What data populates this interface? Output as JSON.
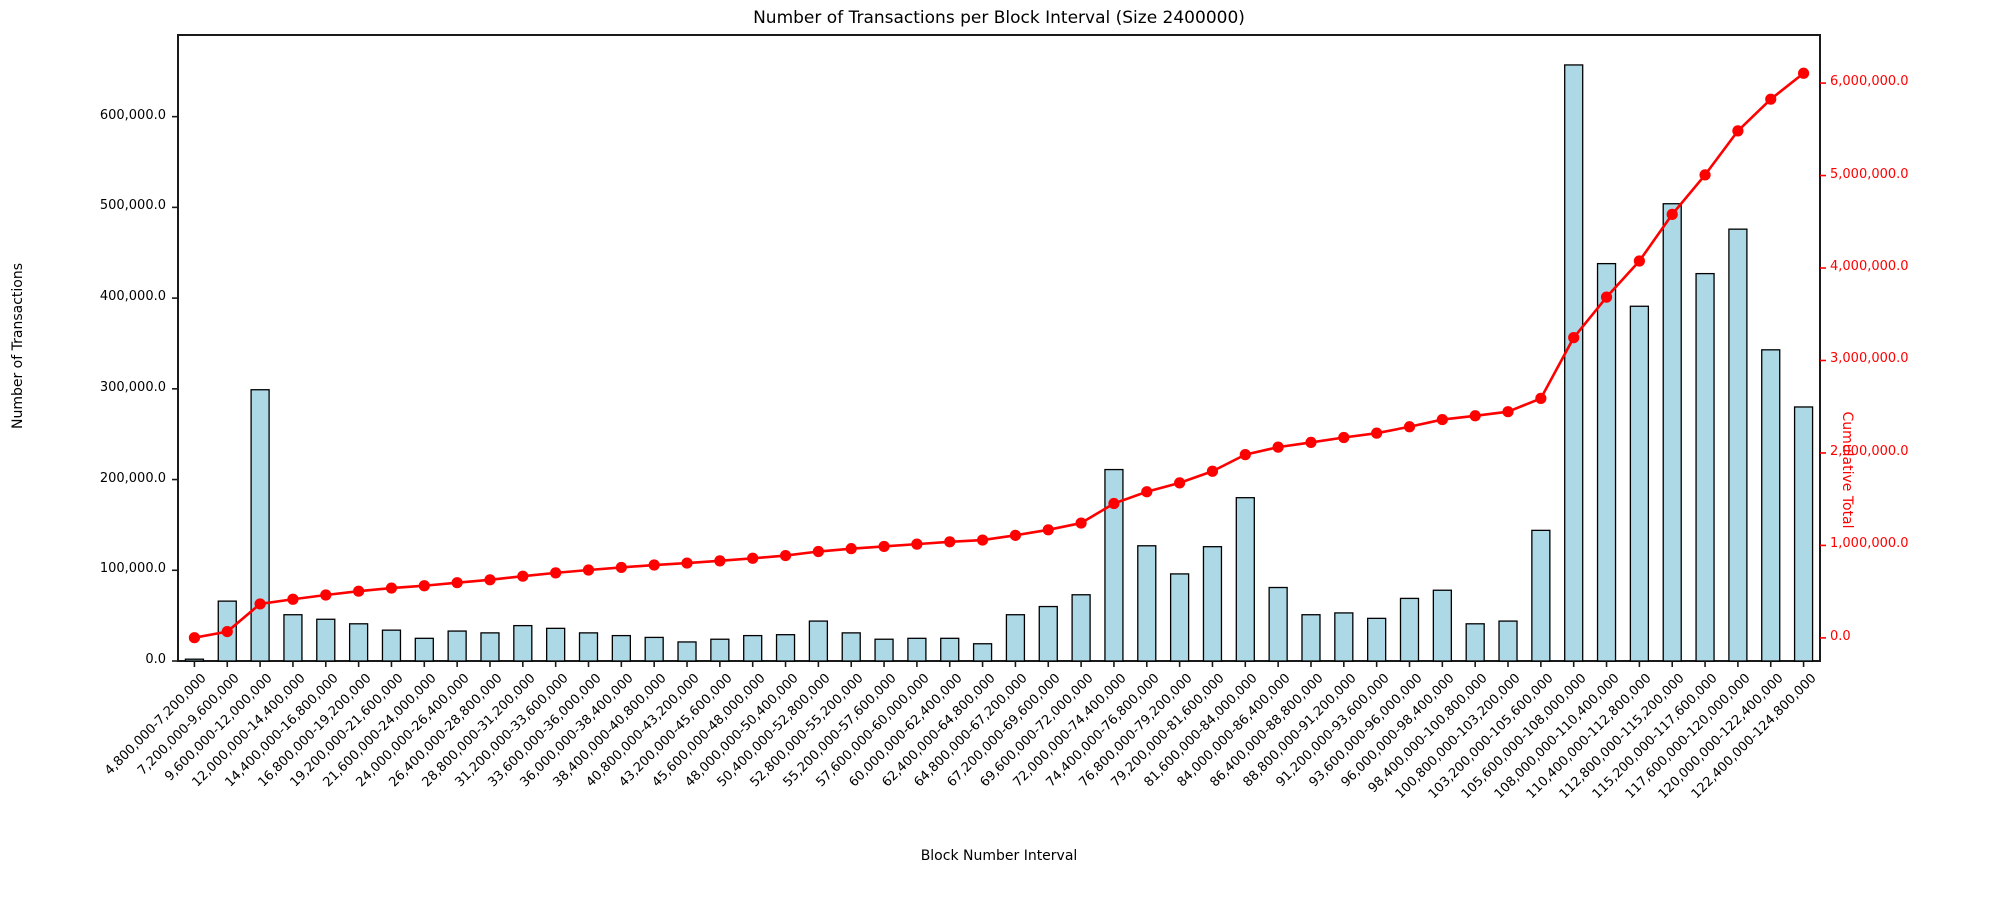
{
  "chart_data": {
    "type": "bar",
    "title": "Number of Transactions per Block Interval (Size 2400000)",
    "xlabel": "Block Number Interval",
    "ylabel_left": "Number of Transactions",
    "ylabel_right": "Cumulative Total",
    "legend_position": "none",
    "grid": false,
    "categories": [
      "4,800,000-7,200,000",
      "7,200,000-9,600,000",
      "9,600,000-12,000,000",
      "12,000,000-14,400,000",
      "14,400,000-16,800,000",
      "16,800,000-19,200,000",
      "19,200,000-21,600,000",
      "21,600,000-24,000,000",
      "24,000,000-26,400,000",
      "26,400,000-28,800,000",
      "28,800,000-31,200,000",
      "31,200,000-33,600,000",
      "33,600,000-36,000,000",
      "36,000,000-38,400,000",
      "38,400,000-40,800,000",
      "40,800,000-43,200,000",
      "43,200,000-45,600,000",
      "45,600,000-48,000,000",
      "48,000,000-50,400,000",
      "50,400,000-52,800,000",
      "52,800,000-55,200,000",
      "55,200,000-57,600,000",
      "57,600,000-60,000,000",
      "60,000,000-62,400,000",
      "62,400,000-64,800,000",
      "64,800,000-67,200,000",
      "67,200,000-69,600,000",
      "69,600,000-72,000,000",
      "72,000,000-74,400,000",
      "74,400,000-76,800,000",
      "76,800,000-79,200,000",
      "79,200,000-81,600,000",
      "81,600,000-84,000,000",
      "84,000,000-86,400,000",
      "86,400,000-88,800,000",
      "88,800,000-91,200,000",
      "91,200,000-93,600,000",
      "93,600,000-96,000,000",
      "96,000,000-98,400,000",
      "98,400,000-100,800,000",
      "100,800,000-103,200,000",
      "103,200,000-105,600,000",
      "105,600,000-108,000,000",
      "108,000,000-110,400,000",
      "110,400,000-112,800,000",
      "112,800,000-115,200,000",
      "115,200,000-117,600,000",
      "117,600,000-120,000,000",
      "120,000,000-122,400,000",
      "122,400,000-124,800,000"
    ],
    "series": [
      {
        "name": "Number of Transactions",
        "kind": "bar",
        "axis": "left",
        "color": "#add8e6",
        "edge_color": "#000000",
        "values": [
          2000,
          66000,
          299000,
          51000,
          46000,
          41000,
          34000,
          25000,
          33000,
          31000,
          39000,
          36000,
          31000,
          28000,
          26000,
          21000,
          24000,
          28000,
          29000,
          44000,
          31000,
          24000,
          25000,
          25000,
          19000,
          51000,
          60000,
          73000,
          211000,
          127000,
          96000,
          126000,
          180000,
          81000,
          51000,
          53000,
          47000,
          69000,
          78000,
          41000,
          44000,
          144000,
          657000,
          438000,
          391000,
          504000,
          427000,
          476000,
          343000,
          280000
        ]
      },
      {
        "name": "Cumulative Total",
        "kind": "line",
        "axis": "right",
        "color": "#ff0000",
        "marker": "circle",
        "values": [
          2000,
          68000,
          367000,
          418000,
          464000,
          505000,
          539000,
          564000,
          597000,
          628000,
          667000,
          703000,
          734000,
          762000,
          788000,
          809000,
          833000,
          861000,
          890000,
          934000,
          965000,
          989000,
          1014000,
          1039000,
          1058000,
          1109000,
          1169000,
          1242000,
          1453000,
          1580000,
          1676000,
          1802000,
          1982000,
          2063000,
          2114000,
          2167000,
          2214000,
          2283000,
          2361000,
          2402000,
          2446000,
          2590000,
          3247000,
          3685000,
          4076000,
          4580000,
          5007000,
          5483000,
          5826000,
          6106000
        ]
      }
    ],
    "left_axis": {
      "ticks": [
        0,
        100000,
        200000,
        300000,
        400000,
        500000,
        600000
      ],
      "tick_labels": [
        "0.0",
        "100,000.0",
        "200,000.0",
        "300,000.0",
        "400,000.0",
        "500,000.0",
        "600,000.0"
      ],
      "range": [
        0,
        690000
      ],
      "color": "#000000"
    },
    "right_axis": {
      "ticks": [
        0,
        1000000,
        2000000,
        3000000,
        4000000,
        5000000,
        6000000
      ],
      "tick_labels": [
        "0.0",
        "1,000,000.0",
        "2,000,000.0",
        "3,000,000.0",
        "4,000,000.0",
        "5,000,000.0",
        "6,000,000.0"
      ],
      "range": [
        -250000,
        6520000
      ],
      "color": "#ff0000"
    }
  }
}
